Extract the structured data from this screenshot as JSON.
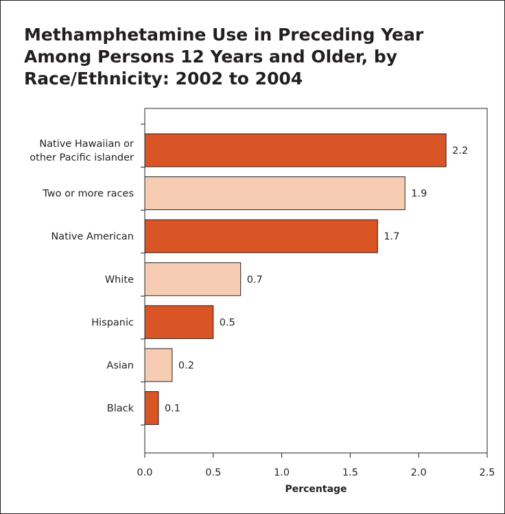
{
  "title": "Methamphetamine Use in Preceding Year Among Persons 12 Years and Older, by Race/Ethnicity: 2002 to 2004",
  "colors": {
    "dark": "#d95526",
    "light": "#f6cdb3",
    "stroke": "#231f20"
  },
  "chart_data": {
    "type": "bar",
    "orientation": "horizontal",
    "categories": [
      [
        "Native Hawaiian or",
        "other Pacific islander"
      ],
      [
        "Two or more races"
      ],
      [
        "Native American"
      ],
      [
        "White"
      ],
      [
        "Hispanic"
      ],
      [
        "Asian"
      ],
      [
        "Black"
      ]
    ],
    "values": [
      2.2,
      1.9,
      1.7,
      0.7,
      0.5,
      0.2,
      0.1
    ],
    "value_labels": [
      "2.2",
      "1.9",
      "1.7",
      "0.7",
      "0.5",
      "0.2",
      "0.1"
    ],
    "bar_styles": [
      "dark",
      "light",
      "dark",
      "light",
      "dark",
      "light",
      "dark"
    ],
    "xlim": [
      0,
      2.5
    ],
    "xticks": [
      "0.0",
      "0.5",
      "1.0",
      "1.5",
      "2.0",
      "2.5"
    ],
    "xlabel": "Percentage",
    "grid": false
  }
}
